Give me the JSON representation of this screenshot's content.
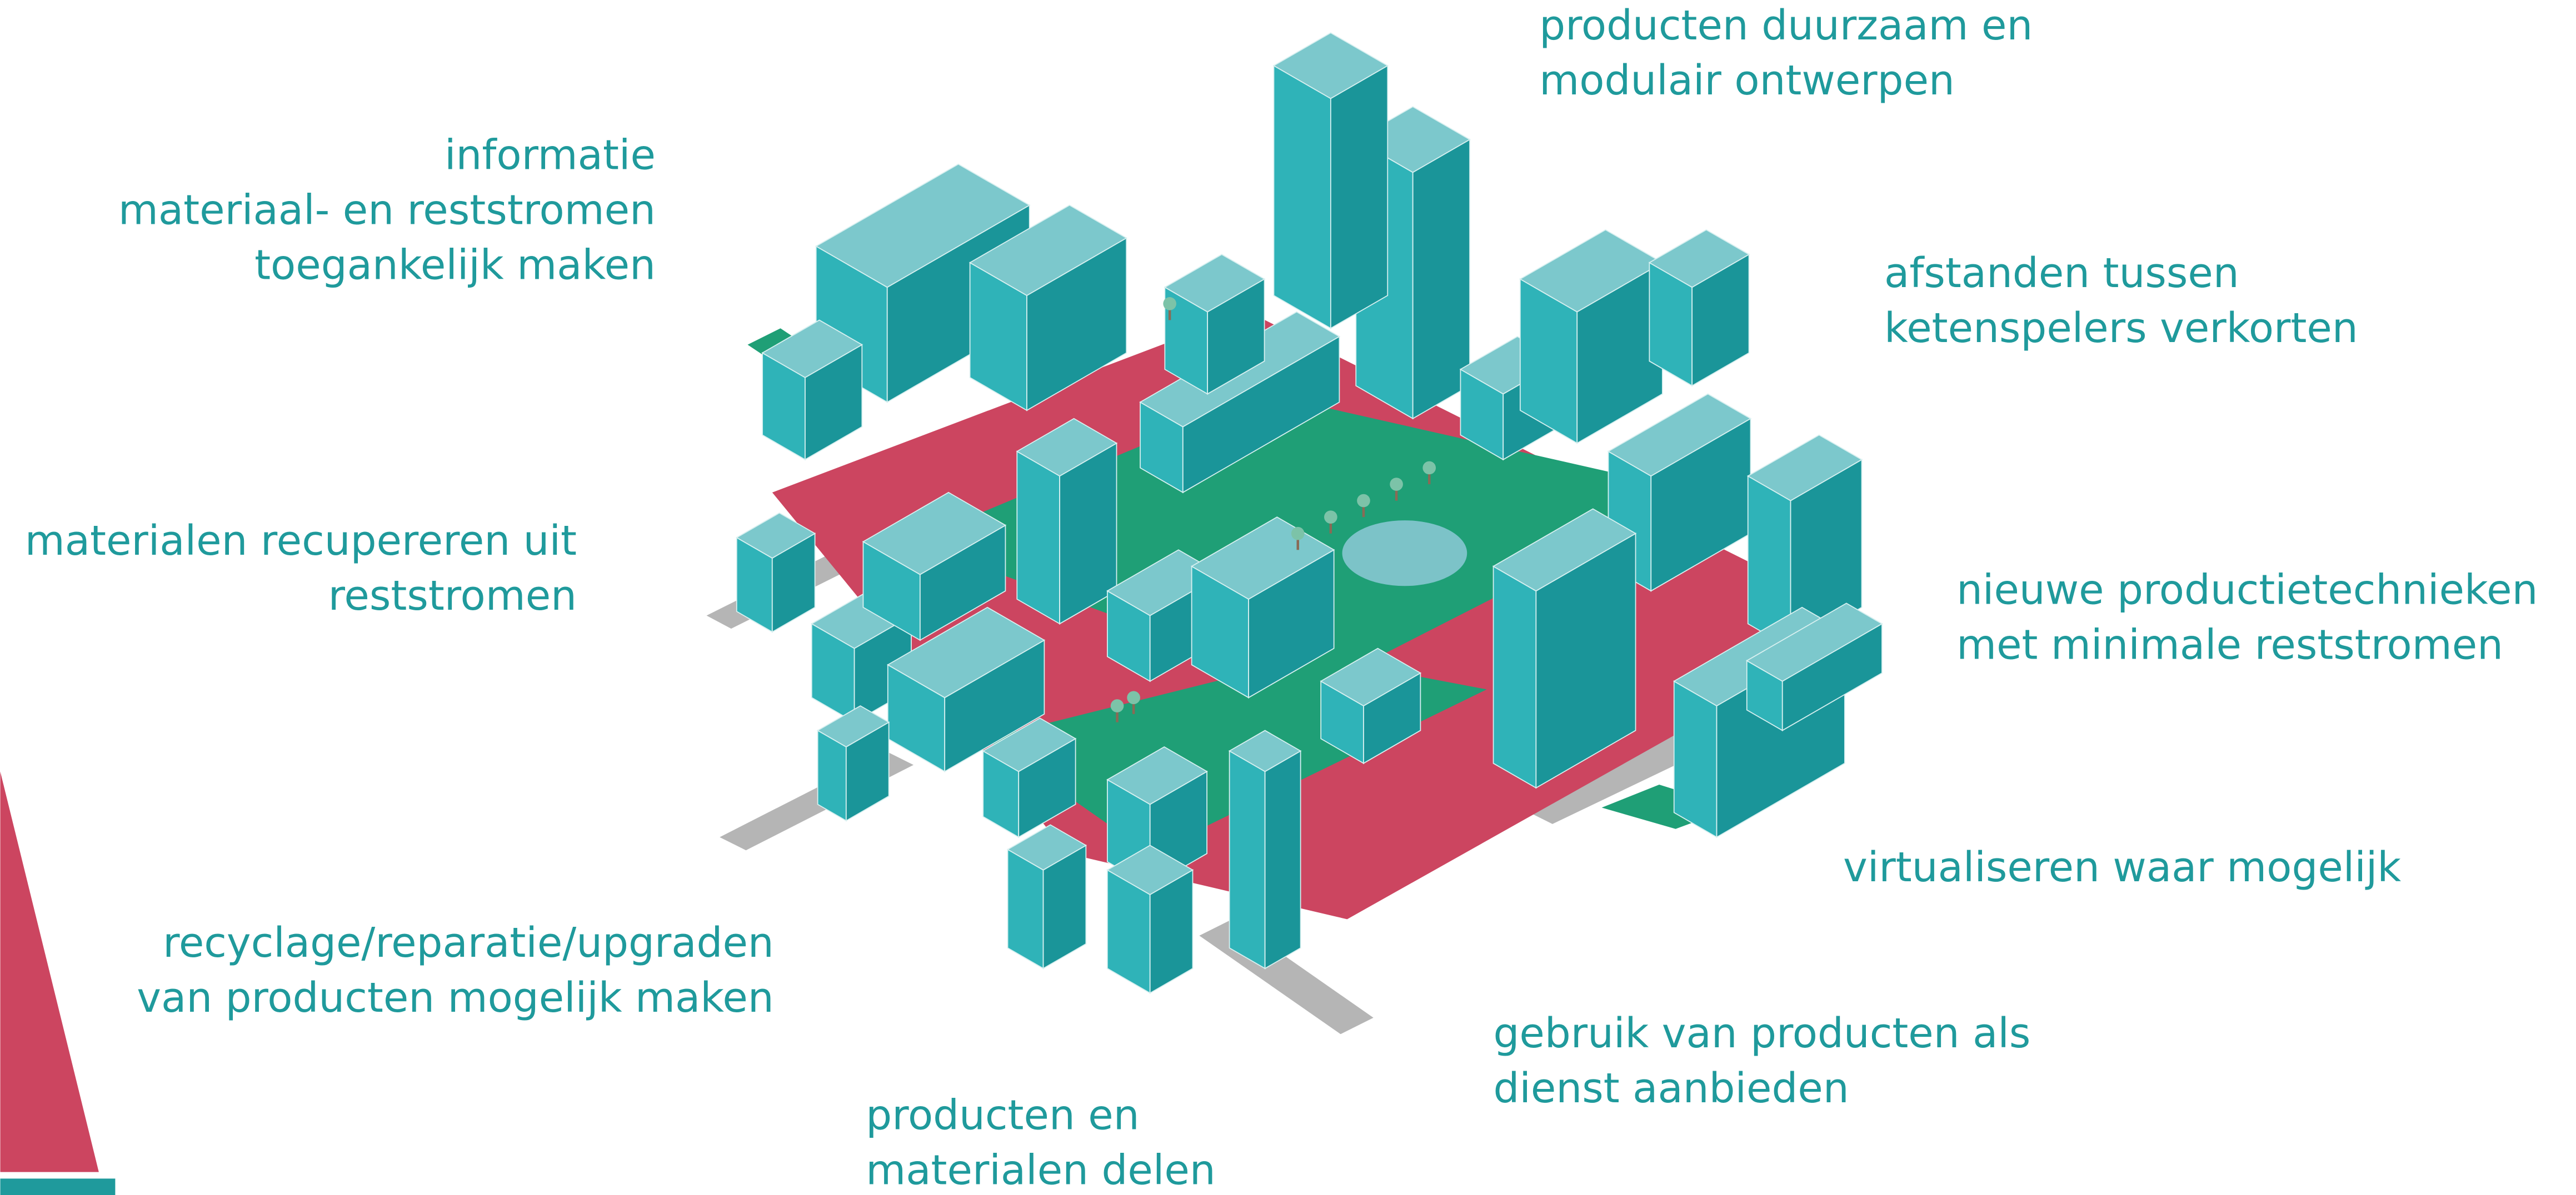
{
  "labels": [
    {
      "lines": [
        "producten duurzaam en",
        "modulair ontwerpen"
      ]
    },
    {
      "lines": [
        "informatie",
        "materiaal- en reststromen",
        "toegankelijk maken"
      ]
    },
    {
      "lines": [
        "afstanden tussen",
        "ketenspelers verkorten"
      ]
    },
    {
      "lines": [
        "materialen recupereren uit",
        "reststromen"
      ]
    },
    {
      "lines": [
        "nieuwe productietechnieken",
        "met minimale reststromen"
      ]
    },
    {
      "lines": [
        "virtualiseren waar mogelijk"
      ]
    },
    {
      "lines": [
        "recyclage/reparatie/upgraden",
        "van producten mogelijk maken"
      ]
    },
    {
      "lines": [
        "gebruik van producten als",
        "dienst aanbieden"
      ]
    },
    {
      "lines": [
        "producten en",
        "materialen delen"
      ]
    }
  ]
}
